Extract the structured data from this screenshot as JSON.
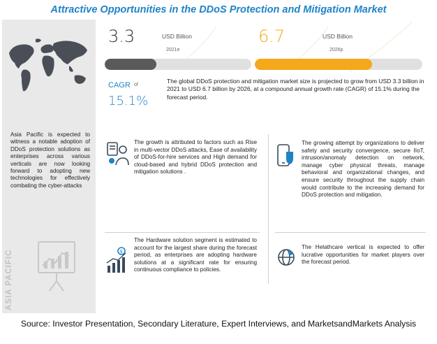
{
  "title": "Attractive Opportunities in the DDoS Protection and Mitigation Market",
  "sidebar": {
    "region_text": "Asia Pacific is expected to witness a notable adoption of DDoS protection solutions as enterprises across various verticals are now looking forward to adopting new technologies for effectively combating the cyber-attacks",
    "vertical_label": "ASIA PACIFIC"
  },
  "market": {
    "value_2021": "3.3",
    "unit_2021": "USD Billion",
    "year_2021": "2021e",
    "value_2026": "6.7",
    "unit_2026": "USD Billion",
    "year_2026": "2026p",
    "bar_2021_fraction": 0.35,
    "bar_2026_fraction": 0.7,
    "cagr_label": "CAGR",
    "cagr_of": "of",
    "cagr_value": "15.1%",
    "description": "The global DDoS protection and mitigation market size is projected to grow from USD 3.3 billion in 2021 to USD 6.7 billion by 2026, at a compound annual growth rate (CAGR) of 15.1% during the forecast period."
  },
  "findings": {
    "growth": "The growth is attributed to factors such as Rise in multi-vector DDoS attacks, Ease of availability of DDoS-for-hire services and High demand for cloud-based and hybrid DDoS protection and mitigation solutions .",
    "security": "The growing attempt by organizations to deliver safety and security convergence, secure IIoT, intrusion/anomaly detection on network, manage cyber physical threats, manage behavioral and organizational changes, and ensure security throughout the supply chain would contribute to the increasing demand for DDoS protection and mitigation.",
    "hardware": "The Hardware solution segment is estimated to account for the largest share during the forecast period, as enterprises are adopting hardware solutions at a significant rate for ensuring continuous compliance to policies.",
    "healthcare": "The Helathcare vertical is expected to offer lucrative opportunities for market players over the forecast period."
  },
  "colors": {
    "accent": "#1f83c6",
    "orange": "#f5a81c",
    "dark_bar": "#5a5a5a",
    "sidebar_bg": "#e9e9e9"
  },
  "source": "Source: Investor Presentation, Secondary Literature, Expert Interviews, and MarketsandMarkets Analysis"
}
